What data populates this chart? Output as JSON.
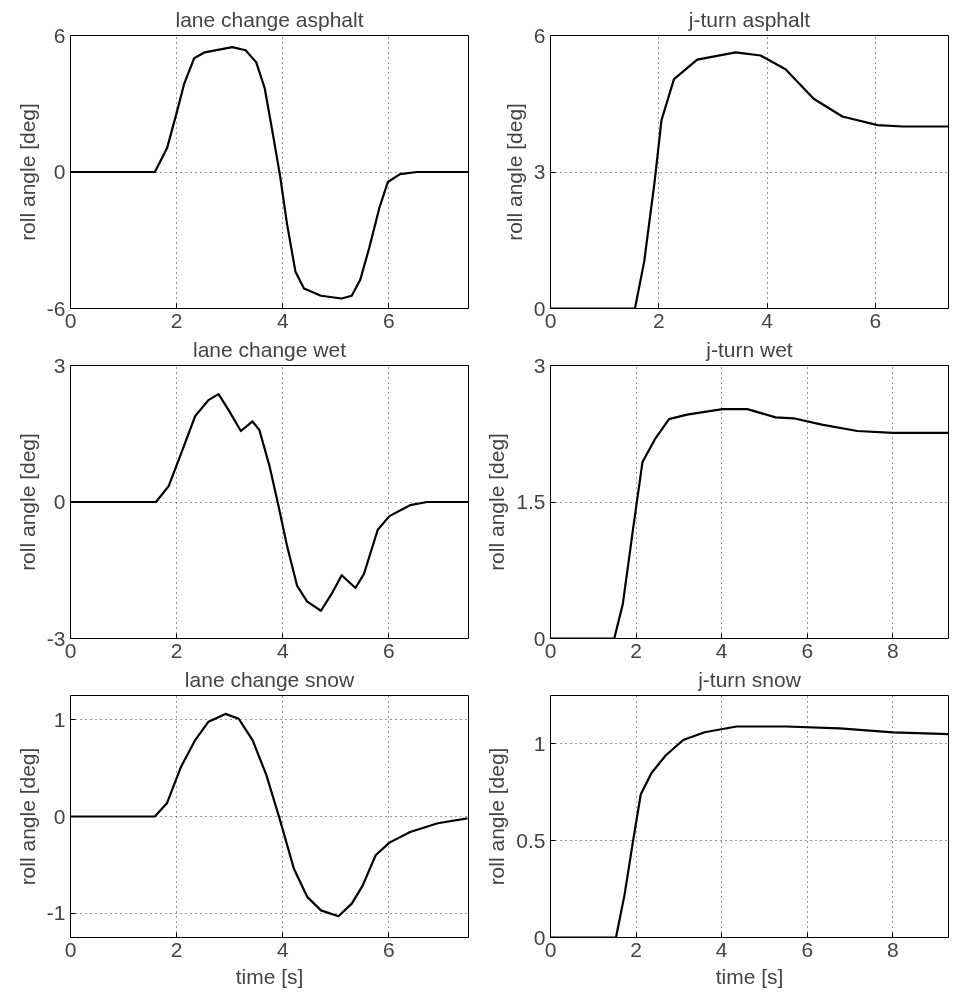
{
  "chart_data": [
    {
      "type": "line",
      "title": "lane change asphalt",
      "ylabel": "roll angle [deg]",
      "color": "#000000",
      "xlim": [
        0,
        7.5
      ],
      "ylim": [
        -6,
        6
      ],
      "xticks": [
        0,
        2,
        4,
        6
      ],
      "yticks": [
        -6,
        0,
        6
      ],
      "grid": true,
      "x": [
        0,
        1.59,
        1.82,
        2.0,
        2.14,
        2.33,
        2.53,
        3.05,
        3.3,
        3.5,
        3.66,
        3.82,
        3.95,
        4.08,
        4.24,
        4.4,
        4.72,
        5.11,
        5.3,
        5.46,
        5.63,
        5.82,
        5.98,
        6.21,
        6.53,
        7.5
      ],
      "values": [
        0,
        0,
        1.05,
        2.6,
        3.86,
        5.0,
        5.26,
        5.49,
        5.35,
        4.82,
        3.68,
        1.58,
        -0.18,
        -2.28,
        -4.39,
        -5.12,
        -5.44,
        -5.56,
        -5.44,
        -4.74,
        -3.33,
        -1.58,
        -0.44,
        -0.09,
        0,
        0
      ]
    },
    {
      "type": "line",
      "title": "j-turn asphalt",
      "ylabel": "roll angle [deg]",
      "color": "#000000",
      "xlim": [
        0,
        7.35
      ],
      "ylim": [
        0,
        6
      ],
      "xticks": [
        0,
        2,
        4,
        6
      ],
      "yticks": [
        0,
        3,
        6
      ],
      "grid": true,
      "x": [
        0,
        1.56,
        1.73,
        1.92,
        2.05,
        2.28,
        2.71,
        3.42,
        3.88,
        4.34,
        4.86,
        5.39,
        6.04,
        6.5,
        7.35
      ],
      "values": [
        0,
        0,
        1.03,
        2.76,
        4.14,
        5.04,
        5.47,
        5.63,
        5.56,
        5.26,
        4.61,
        4.22,
        4.03,
        4.0,
        4.0
      ]
    },
    {
      "type": "line",
      "title": "lane change wet",
      "ylabel": "roll angle [deg]",
      "color": "#000000",
      "xlim": [
        0,
        7.5
      ],
      "ylim": [
        -3,
        3
      ],
      "xticks": [
        0,
        2,
        4,
        6
      ],
      "yticks": [
        -3,
        0,
        3
      ],
      "grid": true,
      "x": [
        0,
        1.61,
        1.85,
        2.08,
        2.35,
        2.6,
        2.79,
        2.98,
        3.21,
        3.43,
        3.56,
        3.75,
        3.92,
        4.08,
        4.27,
        4.46,
        4.72,
        4.92,
        5.11,
        5.37,
        5.53,
        5.79,
        6.01,
        6.4,
        6.72,
        7.5
      ],
      "values": [
        0,
        0,
        0.35,
        1.05,
        1.89,
        2.24,
        2.37,
        2.02,
        1.56,
        1.77,
        1.58,
        0.79,
        -0.09,
        -0.96,
        -1.84,
        -2.19,
        -2.39,
        -2.02,
        -1.61,
        -1.89,
        -1.58,
        -0.61,
        -0.31,
        -0.07,
        0,
        0
      ]
    },
    {
      "type": "line",
      "title": "j-turn wet",
      "ylabel": "roll angle [deg]",
      "color": "#000000",
      "xlim": [
        0,
        9.3
      ],
      "ylim": [
        0,
        3
      ],
      "xticks": [
        0,
        2,
        4,
        6,
        8
      ],
      "yticks": [
        0,
        1.5,
        3
      ],
      "grid": true,
      "x": [
        0,
        1.49,
        1.69,
        1.94,
        2.15,
        2.44,
        2.77,
        3.19,
        4.02,
        4.6,
        5.26,
        5.68,
        6.34,
        7.17,
        8.0,
        9.3
      ],
      "values": [
        0,
        0,
        0.38,
        1.24,
        1.94,
        2.19,
        2.41,
        2.46,
        2.52,
        2.52,
        2.43,
        2.42,
        2.35,
        2.28,
        2.26,
        2.26
      ]
    },
    {
      "type": "line",
      "title": "lane change snow",
      "xlabel": "time [s]",
      "ylabel": "roll angle [deg]",
      "color": "#000000",
      "xlim": [
        0,
        7.5
      ],
      "ylim": [
        -1.25,
        1.25
      ],
      "xticks": [
        0,
        2,
        4,
        6
      ],
      "yticks": [
        -1,
        0,
        1
      ],
      "grid": true,
      "x": [
        0,
        1.59,
        1.82,
        2.08,
        2.35,
        2.6,
        2.92,
        3.17,
        3.43,
        3.69,
        3.95,
        4.21,
        4.46,
        4.72,
        5.05,
        5.3,
        5.5,
        5.75,
        6.01,
        6.4,
        6.92,
        7.48
      ],
      "values": [
        0,
        0,
        0.14,
        0.51,
        0.79,
        0.98,
        1.06,
        1.01,
        0.79,
        0.43,
        -0.04,
        -0.54,
        -0.83,
        -0.97,
        -1.03,
        -0.9,
        -0.72,
        -0.4,
        -0.27,
        -0.16,
        -0.07,
        -0.02
      ]
    },
    {
      "type": "line",
      "title": "j-turn snow",
      "xlabel": "time [s]",
      "ylabel": "roll angle [deg]",
      "color": "#000000",
      "xlim": [
        0,
        9.3
      ],
      "ylim": [
        0,
        1.25
      ],
      "xticks": [
        0,
        2,
        4,
        6,
        8
      ],
      "yticks": [
        0,
        0.5,
        1
      ],
      "grid": true,
      "x": [
        0,
        1.53,
        1.73,
        1.93,
        2.11,
        2.36,
        2.69,
        3.1,
        3.6,
        4.35,
        5.51,
        6.76,
        8.0,
        9.3
      ],
      "values": [
        0,
        0,
        0.22,
        0.5,
        0.74,
        0.85,
        0.94,
        1.02,
        1.06,
        1.09,
        1.09,
        1.08,
        1.06,
        1.05
      ]
    }
  ]
}
